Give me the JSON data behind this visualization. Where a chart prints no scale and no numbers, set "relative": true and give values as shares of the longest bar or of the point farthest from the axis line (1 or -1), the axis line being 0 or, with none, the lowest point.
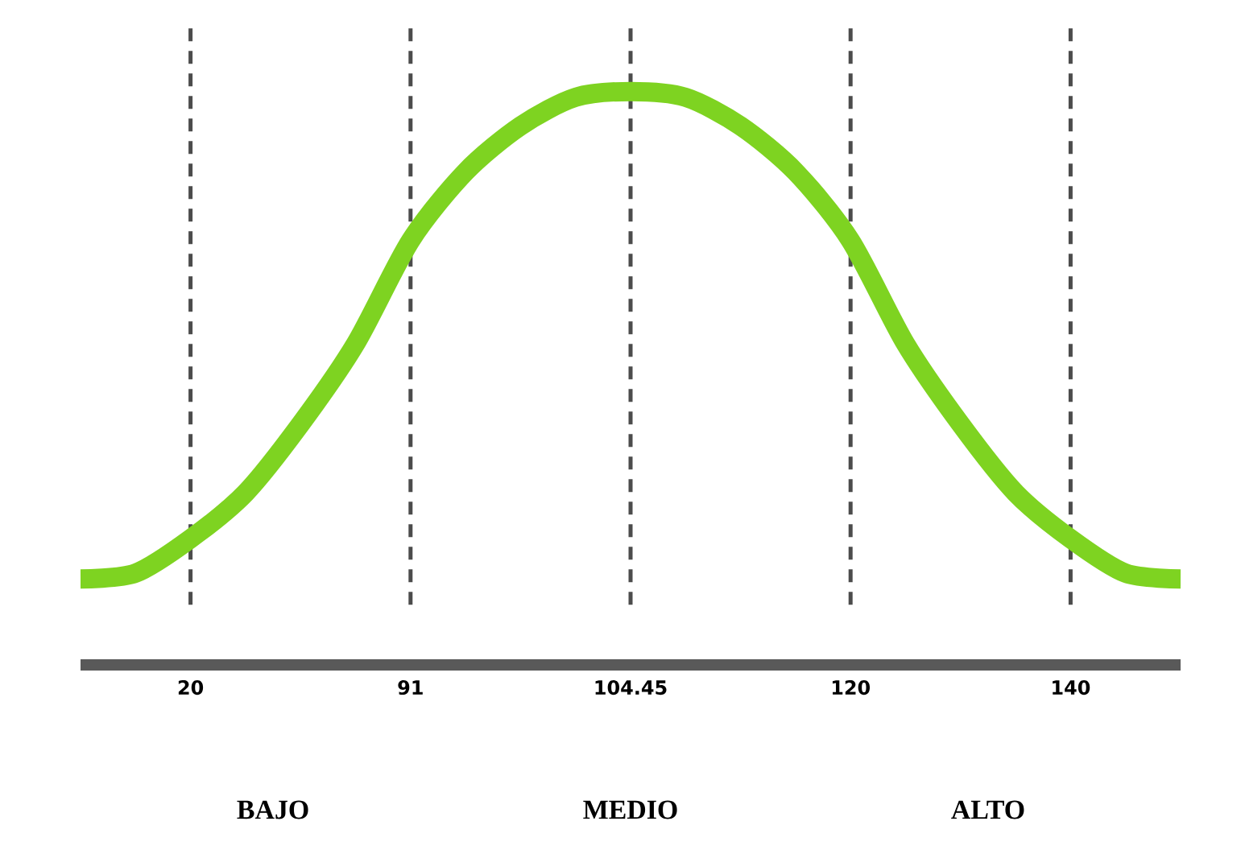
{
  "chart_data": {
    "type": "line",
    "relative": true,
    "grid": "x",
    "line_style": "solid",
    "marker": "none",
    "categories": [
      null,
      null,
      "20",
      null,
      null,
      null,
      "91",
      null,
      null,
      null,
      "104.45",
      null,
      null,
      null,
      "120",
      null,
      null,
      null,
      "140",
      null,
      null
    ],
    "series": [
      {
        "color": "#7ed321",
        "values": [
          0.15,
          0.16,
          0.22,
          0.3,
          0.42,
          0.56,
          0.74,
          0.86,
          0.94,
          0.99,
          1.0,
          0.99,
          0.94,
          0.86,
          0.74,
          0.56,
          0.42,
          0.3,
          0.22,
          0.16,
          0.15
        ]
      }
    ],
    "annotations": [
      "BAJO",
      "MEDIO",
      "ALTO"
    ]
  }
}
